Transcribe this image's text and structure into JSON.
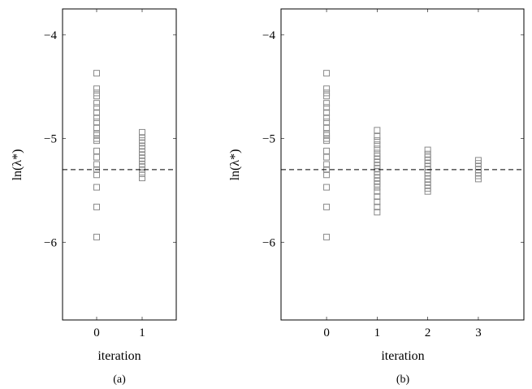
{
  "chart_data": [
    {
      "type": "scatter",
      "panel_label": "(a)",
      "xlabel": "iteration",
      "ylabel": "ln(λ*)",
      "xlim": [
        -0.75,
        1.75
      ],
      "ylim": [
        -6.75,
        -3.75
      ],
      "xticks": [
        0,
        1
      ],
      "yticks": [
        -6,
        -5,
        -4
      ],
      "ytick_labels": [
        "−6",
        "−5",
        "−4"
      ],
      "reference_line": -5.3,
      "marker": "open-square",
      "marker_color": "#8a8a8a",
      "points": [
        {
          "x": 0,
          "y": [
            -4.37,
            -4.52,
            -4.56,
            -4.59,
            -4.66,
            -4.7,
            -4.75,
            -4.8,
            -4.84,
            -4.9,
            -4.95,
            -4.97,
            -5.0,
            -5.02,
            -5.12,
            -5.18,
            -5.25,
            -5.3,
            -5.35,
            -5.47,
            -5.66,
            -5.95
          ]
        },
        {
          "x": 1,
          "y": [
            -4.94,
            -4.99,
            -5.02,
            -5.04,
            -5.07,
            -5.1,
            -5.13,
            -5.16,
            -5.19,
            -5.22,
            -5.25,
            -5.27,
            -5.3,
            -5.34,
            -5.38
          ]
        }
      ]
    },
    {
      "type": "scatter",
      "panel_label": "(b)",
      "xlabel": "iteration",
      "ylabel": "ln(λ*)",
      "xlim": [
        -0.9,
        3.9
      ],
      "ylim": [
        -6.75,
        -3.75
      ],
      "xticks": [
        0,
        1,
        2,
        3
      ],
      "yticks": [
        -6,
        -5,
        -4
      ],
      "ytick_labels": [
        "−6",
        "−5",
        "−4"
      ],
      "reference_line": -5.3,
      "marker": "open-square",
      "marker_color": "#8a8a8a",
      "points": [
        {
          "x": 0,
          "y": [
            -4.37,
            -4.52,
            -4.56,
            -4.59,
            -4.66,
            -4.7,
            -4.75,
            -4.8,
            -4.84,
            -4.9,
            -4.95,
            -4.97,
            -5.0,
            -5.02,
            -5.12,
            -5.18,
            -5.25,
            -5.3,
            -5.35,
            -5.47,
            -5.66,
            -5.95
          ]
        },
        {
          "x": 1,
          "y": [
            -4.92,
            -4.98,
            -5.02,
            -5.06,
            -5.1,
            -5.14,
            -5.17,
            -5.2,
            -5.23,
            -5.26,
            -5.29,
            -5.32,
            -5.35,
            -5.38,
            -5.41,
            -5.44,
            -5.47,
            -5.51,
            -5.56,
            -5.61,
            -5.66,
            -5.71
          ]
        },
        {
          "x": 2,
          "y": [
            -5.11,
            -5.15,
            -5.18,
            -5.21,
            -5.24,
            -5.27,
            -5.3,
            -5.33,
            -5.36,
            -5.39,
            -5.42,
            -5.45,
            -5.48,
            -5.51
          ]
        },
        {
          "x": 3,
          "y": [
            -5.21,
            -5.24,
            -5.27,
            -5.3,
            -5.33,
            -5.36,
            -5.39
          ]
        }
      ]
    }
  ]
}
